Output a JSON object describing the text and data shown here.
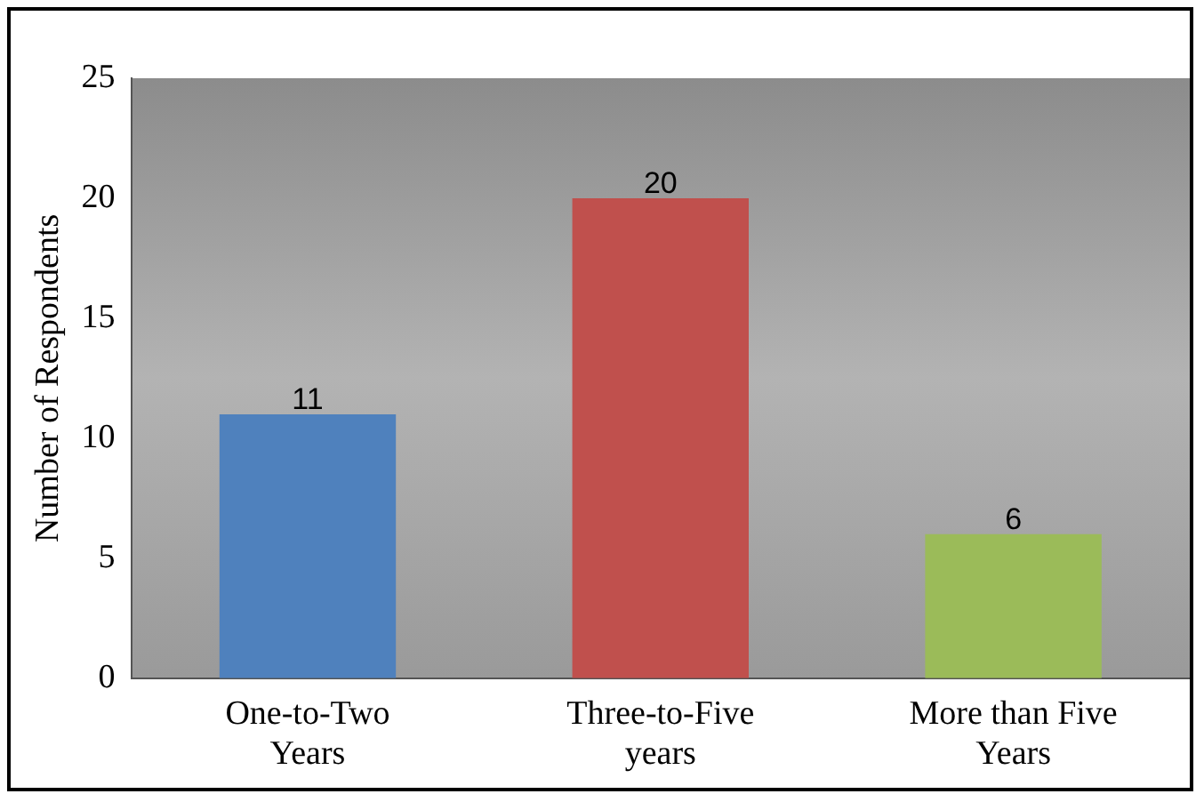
{
  "chart_data": {
    "type": "bar",
    "ylabel": "Number of Respondents",
    "categories": [
      "One-to-Two Years",
      "Three-to-Five years",
      "More than Five Years"
    ],
    "values": [
      11,
      20,
      6
    ],
    "colors": [
      "#4f81bd",
      "#c0504d",
      "#9bbb59"
    ],
    "ylim": [
      0,
      25
    ],
    "yticks": [
      0,
      5,
      10,
      15,
      20,
      25
    ],
    "grid": false,
    "legend": false,
    "data_labels": true
  }
}
